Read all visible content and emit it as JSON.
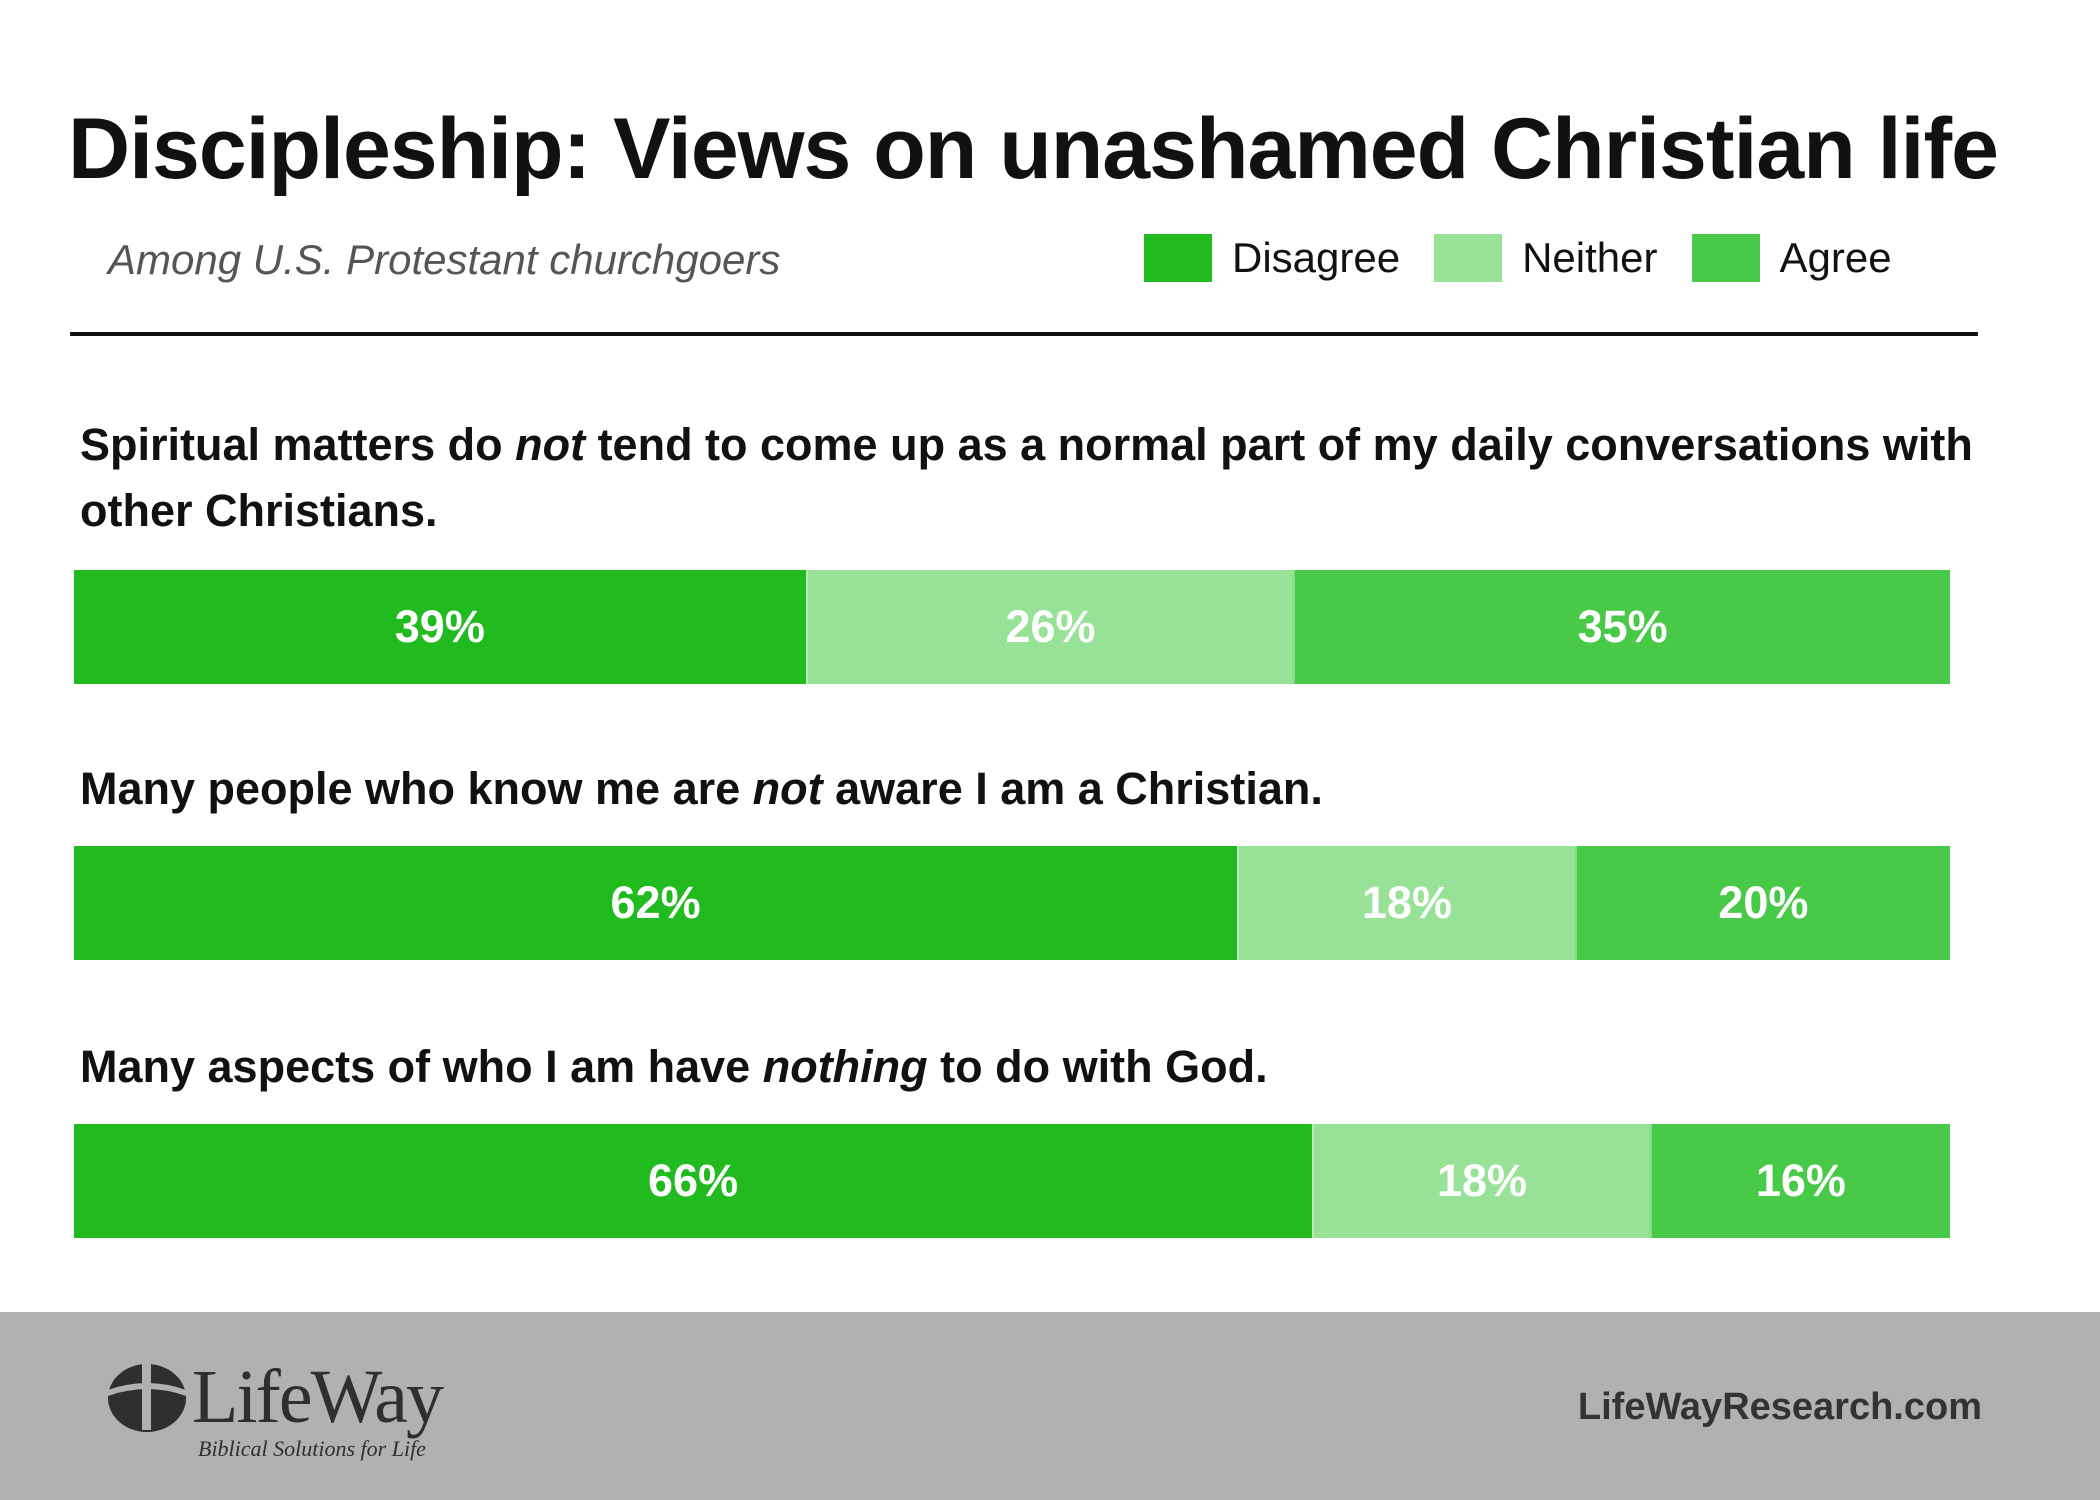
{
  "chart_data": {
    "type": "bar",
    "orientation": "horizontal",
    "stacked": true,
    "title": "Discipleship: Views on unashamed Christian life",
    "subtitle": "Among U.S. Protestant churchgoers",
    "legend_position": "top-right",
    "grid": false,
    "xlim": [
      0,
      100
    ],
    "categories": [
      {
        "parts": [
          {
            "text": "Spiritual matters do ",
            "italic": false
          },
          {
            "text": "not",
            "italic": true
          },
          {
            "text": " tend to come up as a normal part of my daily conversations with other Christians.",
            "italic": false
          }
        ]
      },
      {
        "parts": [
          {
            "text": "Many people who know me are ",
            "italic": false
          },
          {
            "text": "not",
            "italic": true
          },
          {
            "text": " aware I am a Christian.",
            "italic": false
          }
        ]
      },
      {
        "parts": [
          {
            "text": "Many aspects of who I am have ",
            "italic": false
          },
          {
            "text": "nothing",
            "italic": true
          },
          {
            "text": " to do with God.",
            "italic": false
          }
        ]
      }
    ],
    "series": [
      {
        "name": "Disagree",
        "key": "disagree",
        "color": "#21bb1f",
        "values": [
          39,
          62,
          66
        ],
        "labels": [
          "39%",
          "62%",
          "66%"
        ]
      },
      {
        "name": "Neither",
        "key": "neither",
        "color": "#97e296",
        "values": [
          26,
          18,
          18
        ],
        "labels": [
          "26%",
          "18%",
          "18%"
        ]
      },
      {
        "name": "Agree",
        "key": "agree",
        "color": "#48c948",
        "values": [
          35,
          20,
          16
        ],
        "labels": [
          "35%",
          "20%",
          "16%"
        ]
      }
    ]
  },
  "footer": {
    "logo_name": "LifeWay",
    "logo_tagline": "Biblical Solutions for Life",
    "website": "LifeWayResearch.com"
  }
}
